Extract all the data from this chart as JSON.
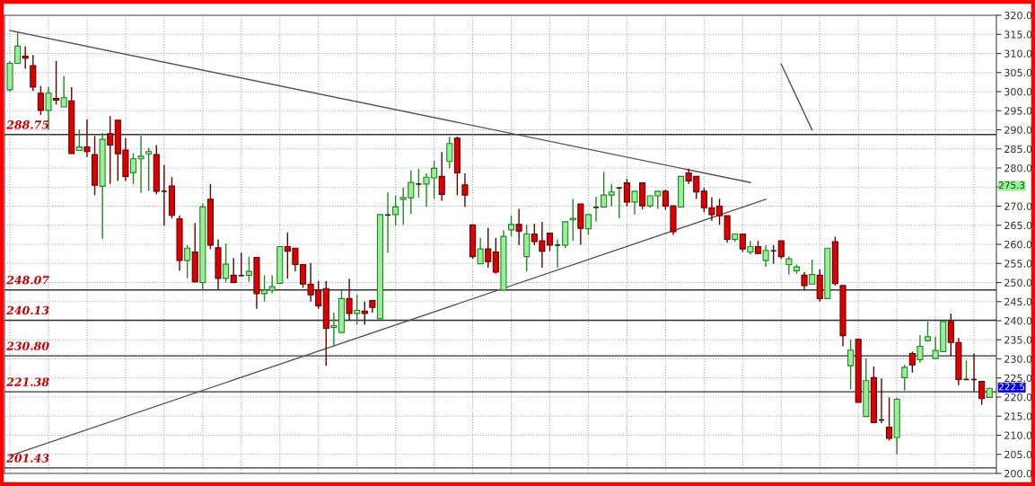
{
  "chart_data": {
    "type": "candlestick",
    "categories": [
      null,
      null,
      null,
      null,
      null,
      null,
      null,
      null,
      null,
      null,
      null,
      null,
      null,
      null,
      null,
      null,
      null,
      null,
      null,
      null,
      null,
      null,
      null,
      null,
      null,
      null,
      null,
      null,
      null,
      null,
      null,
      null,
      null,
      null,
      null,
      null,
      null,
      null,
      null,
      null,
      null,
      null,
      null,
      null,
      null,
      null,
      null,
      null,
      null,
      null,
      null,
      null,
      null,
      null,
      null,
      null,
      null,
      null,
      null,
      null,
      null,
      null,
      null,
      null,
      null,
      null,
      null,
      null,
      null,
      null,
      null,
      null,
      null,
      null,
      null,
      null,
      null,
      null,
      null,
      null,
      null,
      null,
      null,
      null,
      null,
      null,
      null,
      null,
      null,
      null,
      null,
      null,
      null,
      null,
      null,
      null,
      null,
      null,
      null,
      null,
      null,
      null,
      null,
      null,
      null,
      null,
      null,
      null,
      null,
      null,
      null,
      null,
      null,
      null,
      null,
      null,
      null,
      null,
      null,
      null,
      null,
      null,
      null,
      null,
      null,
      null,
      null,
      null
    ],
    "ohlc": [
      [
        300.5,
        308,
        300,
        307.4
      ],
      [
        307.4,
        315.5,
        307.4,
        311.9
      ],
      [
        309.3,
        311.9,
        306.0,
        308.8
      ],
      [
        306.8,
        309.6,
        300.2,
        301.2
      ],
      [
        299.6,
        301.5,
        293.9,
        295.1
      ],
      [
        295.1,
        301.3,
        290.0,
        299.6
      ],
      [
        298.2,
        308.0,
        296.6,
        297.8
      ],
      [
        296.0,
        304.1,
        296.0,
        298.4
      ],
      [
        297.6,
        301.2,
        283.8,
        283.8
      ],
      [
        284.6,
        290.0,
        284.6,
        285.5
      ],
      [
        285.5,
        292.7,
        282.9,
        284.3
      ],
      [
        283.5,
        288.4,
        272.9,
        275.5
      ],
      [
        275.2,
        289.2,
        261.5,
        287.5
      ],
      [
        289.0,
        293.6,
        275.8,
        286.0
      ],
      [
        292.5,
        292.5,
        276.6,
        283.7
      ],
      [
        284.7,
        287.8,
        276.6,
        277.8
      ],
      [
        278.8,
        283.9,
        275.8,
        282.4
      ],
      [
        282.4,
        288.4,
        273.5,
        283.1
      ],
      [
        283.7,
        285.3,
        274.0,
        284.3
      ],
      [
        283.5,
        286.0,
        273.1,
        273.9
      ],
      [
        274.0,
        280.8,
        264.9,
        273.9
      ],
      [
        275.3,
        277.6,
        266.8,
        267.6
      ],
      [
        266.7,
        267.6,
        253.1,
        255.8
      ],
      [
        255.8,
        259.8,
        251.1,
        259.0
      ],
      [
        258.0,
        265.6,
        250.0,
        250.2
      ],
      [
        250.0,
        270.7,
        248.0,
        269.8
      ],
      [
        271.8,
        275.8,
        258.7,
        259.8
      ],
      [
        259.1,
        261.3,
        248.0,
        251.1
      ],
      [
        251.1,
        260.2,
        250.0,
        254.8
      ],
      [
        251.9,
        256.4,
        250.0,
        250.0
      ],
      [
        252.1,
        257.8,
        251.8,
        251.8
      ],
      [
        251.9,
        256.8,
        250.2,
        252.9
      ],
      [
        256.6,
        256.6,
        243.1,
        247.1
      ],
      [
        247.1,
        251.9,
        245.0,
        248.0
      ],
      [
        248.0,
        251.9,
        247.2,
        248.9
      ],
      [
        249.8,
        259.4,
        249.8,
        259.4
      ],
      [
        259.4,
        263.1,
        251.0,
        258.2
      ],
      [
        259.0,
        259.0,
        252.9,
        254.7
      ],
      [
        254.7,
        254.7,
        248.6,
        249.6
      ],
      [
        249.6,
        255.1,
        245.0,
        246.8
      ],
      [
        248.0,
        250.4,
        243.1,
        243.9
      ],
      [
        248.4,
        250.4,
        228.2,
        238.0
      ],
      [
        238.2,
        242.1,
        233.3,
        238.7
      ],
      [
        236.9,
        248.0,
        236.9,
        245.8
      ],
      [
        245.8,
        251.0,
        240.2,
        241.9
      ],
      [
        241.9,
        246.8,
        239.0,
        242.7
      ],
      [
        242.5,
        245.0,
        239.0,
        241.9
      ],
      [
        245.3,
        245.3,
        242.1,
        243.5
      ],
      [
        240.5,
        267.8,
        240.5,
        267.8
      ],
      [
        267.7,
        273.7,
        257.8,
        267.8
      ],
      [
        267.8,
        272.7,
        264.9,
        269.8
      ],
      [
        271.8,
        274.8,
        265.1,
        272.3
      ],
      [
        272.2,
        279.4,
        268.0,
        276.2
      ],
      [
        275.8,
        279.8,
        272.2,
        275.9
      ],
      [
        275.8,
        278.6,
        269.8,
        277.6
      ],
      [
        277.4,
        281.9,
        271.9,
        279.9
      ],
      [
        277.8,
        284.2,
        271.4,
        273.1
      ],
      [
        281.7,
        288.2,
        279.9,
        286.4
      ],
      [
        287.8,
        288.2,
        272.9,
        278.7
      ],
      [
        275.6,
        278.6,
        269.8,
        272.9
      ],
      [
        265.1,
        265.1,
        256.2,
        256.8
      ],
      [
        254.9,
        261.7,
        254.9,
        258.8
      ],
      [
        258.8,
        264.3,
        253.9,
        255.5
      ],
      [
        258.0,
        261.7,
        252.3,
        252.7
      ],
      [
        248.0,
        263.7,
        248.0,
        262.1
      ],
      [
        263.8,
        267.6,
        262.1,
        265.2
      ],
      [
        265.2,
        269.3,
        259.8,
        263.5
      ],
      [
        256.8,
        265.1,
        252.9,
        262.7
      ],
      [
        262.7,
        265.4,
        259.8,
        260.7
      ],
      [
        260.9,
        265.9,
        253.9,
        258.2
      ],
      [
        262.9,
        262.9,
        258.2,
        259.8
      ],
      [
        259.8,
        261.3,
        253.9,
        259.9
      ],
      [
        259.8,
        265.9,
        259.0,
        265.9
      ],
      [
        266.4,
        271.9,
        260.9,
        266.8
      ],
      [
        270.6,
        270.6,
        259.9,
        264.2
      ],
      [
        264.1,
        267.8,
        262.5,
        267.8
      ],
      [
        269.7,
        272.5,
        266.0,
        269.8
      ],
      [
        269.8,
        279.0,
        269.8,
        272.9
      ],
      [
        272.9,
        275.8,
        270.0,
        273.7
      ],
      [
        274.8,
        275.0,
        266.8,
        274.9
      ],
      [
        276.1,
        277.2,
        270.0,
        271.1
      ],
      [
        271.1,
        273.9,
        267.8,
        273.9
      ],
      [
        276.1,
        276.1,
        269.2,
        270.1
      ],
      [
        270.1,
        272.7,
        269.6,
        272.7
      ],
      [
        272.7,
        273.9,
        269.3,
        273.9
      ],
      [
        273.9,
        274.3,
        269.0,
        270.0
      ],
      [
        270.1,
        270.1,
        262.5,
        263.3
      ],
      [
        269.8,
        277.8,
        269.8,
        277.8
      ],
      [
        278.7,
        279.8,
        275.8,
        276.6
      ],
      [
        277.8,
        277.8,
        271.9,
        273.7
      ],
      [
        273.9,
        274.8,
        268.4,
        269.6
      ],
      [
        269.6,
        272.3,
        266.2,
        267.8
      ],
      [
        270.0,
        271.9,
        265.1,
        267.5
      ],
      [
        267.5,
        267.5,
        260.5,
        261.3
      ],
      [
        261.3,
        262.7,
        260.7,
        262.7
      ],
      [
        262.7,
        262.7,
        258.0,
        258.8
      ],
      [
        258.0,
        260.9,
        257.3,
        259.4
      ],
      [
        259.4,
        260.9,
        257.6,
        257.6
      ],
      [
        255.8,
        259.8,
        254.1,
        258.4
      ],
      [
        258.4,
        259.8,
        254.9,
        258.3
      ],
      [
        260.9,
        260.9,
        256.2,
        256.8
      ],
      [
        254.7,
        256.8,
        252.1,
        256.2
      ],
      [
        253.1,
        254.7,
        252.3,
        254.1
      ],
      [
        251.9,
        252.7,
        248.0,
        249.2
      ],
      [
        249.6,
        256.0,
        249.6,
        252.1
      ],
      [
        251.9,
        253.5,
        245.0,
        245.8
      ],
      [
        245.8,
        259.0,
        245.8,
        259.0
      ],
      [
        260.7,
        262.0,
        249.2,
        249.7
      ],
      [
        249.2,
        249.2,
        233.3,
        236.1
      ],
      [
        228.2,
        235.1,
        222.0,
        232.3
      ],
      [
        235.1,
        235.1,
        218.6,
        218.6
      ],
      [
        214.9,
        230.1,
        214.9,
        224.3
      ],
      [
        225.1,
        228.0,
        213.3,
        213.3
      ],
      [
        214.1,
        224.9,
        213.2,
        214.0
      ],
      [
        212.1,
        219.9,
        208.6,
        209.2
      ],
      [
        209.4,
        219.8,
        205.0,
        219.4
      ],
      [
        225.1,
        228.4,
        221.7,
        227.8
      ],
      [
        231.4,
        231.9,
        226.4,
        228.4
      ],
      [
        229.8,
        236.2,
        229.0,
        233.3
      ],
      [
        234.8,
        239.8,
        234.5,
        235.8
      ],
      [
        230.1,
        235.8,
        230.1,
        232.2
      ],
      [
        231.9,
        240.2,
        231.9,
        239.8
      ],
      [
        239.8,
        241.9,
        230.7,
        234.3
      ],
      [
        234.3,
        235.5,
        223.1,
        224.6
      ],
      [
        224.6,
        229.6,
        224.6,
        224.8
      ],
      [
        224.8,
        231.4,
        221.5,
        224.6
      ],
      [
        224.1,
        224.1,
        218.0,
        219.6
      ],
      [
        219.9,
        222.5,
        219.8,
        222.3
      ]
    ],
    "series": [
      {
        "type": "line",
        "color": "#555555",
        "values": [
          316.0,
          null,
          null,
          null,
          null,
          null,
          null,
          null,
          null,
          null,
          null,
          null,
          null,
          null,
          null,
          null,
          null,
          null,
          null,
          null,
          null,
          null,
          null,
          null,
          null,
          null,
          null,
          null,
          null,
          null,
          null,
          null,
          null,
          null,
          null,
          null,
          null,
          null,
          null,
          null,
          null,
          null,
          null,
          null,
          null,
          null,
          null,
          null,
          null,
          null,
          null,
          null,
          null,
          null,
          null,
          null,
          null,
          null,
          null,
          null,
          null,
          null,
          null,
          null,
          null,
          null,
          null,
          null,
          null,
          null,
          null,
          null,
          null,
          null,
          null,
          null,
          null,
          null,
          null,
          null,
          null,
          null,
          null,
          null,
          null,
          null,
          null,
          null,
          null,
          null,
          null,
          null,
          null,
          null,
          null,
          null,
          276.2,
          null,
          null,
          null,
          null,
          null,
          null,
          null,
          null,
          null,
          null,
          null,
          null,
          null,
          null,
          null,
          null,
          null,
          null,
          null,
          null,
          null,
          null,
          null,
          null,
          null,
          null,
          null,
          null,
          null,
          null,
          null
        ]
      },
      {
        "type": "line",
        "color": "#555555",
        "values": [
          204.6,
          null,
          null,
          null,
          null,
          null,
          null,
          null,
          null,
          null,
          null,
          null,
          null,
          null,
          null,
          null,
          null,
          null,
          null,
          null,
          null,
          null,
          null,
          null,
          null,
          null,
          null,
          null,
          null,
          null,
          null,
          null,
          null,
          null,
          null,
          null,
          null,
          null,
          null,
          null,
          null,
          null,
          null,
          null,
          null,
          null,
          null,
          null,
          null,
          null,
          null,
          null,
          null,
          null,
          null,
          null,
          null,
          null,
          null,
          null,
          null,
          null,
          null,
          null,
          null,
          null,
          null,
          null,
          null,
          null,
          null,
          null,
          null,
          null,
          null,
          null,
          null,
          null,
          null,
          null,
          null,
          null,
          null,
          null,
          null,
          null,
          null,
          null,
          null,
          null,
          null,
          null,
          null,
          null,
          null,
          null,
          null,
          null,
          271.8,
          null,
          null,
          null,
          null,
          null,
          null,
          null,
          null,
          null,
          null,
          null,
          null,
          null,
          null,
          null,
          null,
          null,
          null,
          null,
          null,
          null,
          null,
          null,
          null,
          null,
          null,
          null,
          null,
          null
        ]
      },
      {
        "type": "line",
        "color": "#555555",
        "values": [
          null,
          null,
          null,
          null,
          null,
          null,
          null,
          null,
          null,
          null,
          null,
          null,
          null,
          null,
          null,
          null,
          null,
          null,
          null,
          null,
          null,
          null,
          null,
          null,
          null,
          null,
          null,
          null,
          null,
          null,
          null,
          null,
          null,
          null,
          null,
          null,
          null,
          null,
          null,
          null,
          null,
          null,
          null,
          null,
          null,
          null,
          null,
          null,
          null,
          null,
          null,
          null,
          null,
          null,
          null,
          null,
          null,
          null,
          null,
          null,
          null,
          null,
          null,
          null,
          null,
          null,
          null,
          null,
          null,
          null,
          null,
          null,
          null,
          null,
          null,
          null,
          null,
          null,
          null,
          null,
          null,
          null,
          null,
          null,
          null,
          null,
          null,
          null,
          null,
          null,
          null,
          null,
          null,
          null,
          null,
          null,
          null,
          null,
          null,
          null,
          307.2,
          null,
          null,
          null,
          290.0,
          null,
          null,
          null,
          null,
          null,
          null,
          null,
          null,
          null,
          null,
          null,
          null,
          null,
          null,
          null,
          null,
          null,
          null,
          null,
          null,
          null,
          null,
          null
        ]
      }
    ],
    "ref_lines": [
      {
        "axis": "y",
        "value": 288.75,
        "label": "288.75",
        "color": "#333333"
      },
      {
        "axis": "y",
        "value": 248.07,
        "label": "248.07",
        "color": "#333333"
      },
      {
        "axis": "y",
        "value": 240.13,
        "label": "240.13",
        "color": "#333333"
      },
      {
        "axis": "y",
        "value": 230.8,
        "label": "230.80",
        "color": "#333333"
      },
      {
        "axis": "y",
        "value": 221.38,
        "label": "221.38",
        "color": "#333333"
      },
      {
        "axis": "y",
        "value": 201.43,
        "label": "201.43",
        "color": "#333333"
      }
    ],
    "annotations": [
      {
        "text": "275.3",
        "y": 275.3
      },
      {
        "text": "222.5",
        "y": 222.5
      }
    ],
    "ylim": [
      200,
      320
    ],
    "yticks": [
      {
        "value": 200,
        "label": "200.0"
      },
      {
        "value": 205,
        "label": "205.0"
      },
      {
        "value": 210,
        "label": "210.0"
      },
      {
        "value": 215,
        "label": "215.0"
      },
      {
        "value": 220,
        "label": "220.0"
      },
      {
        "value": 225,
        "label": "225.0"
      },
      {
        "value": 230,
        "label": "230.0"
      },
      {
        "value": 235,
        "label": "235.0"
      },
      {
        "value": 240,
        "label": "240.0"
      },
      {
        "value": 245,
        "label": "245.0"
      },
      {
        "value": 250,
        "label": "250.0"
      },
      {
        "value": 255,
        "label": "255.0"
      },
      {
        "value": 260,
        "label": "260.0"
      },
      {
        "value": 265,
        "label": "265.0"
      },
      {
        "value": 270,
        "label": "270.0"
      },
      {
        "value": 275,
        "label": null
      },
      {
        "value": 280,
        "label": "280.0"
      },
      {
        "value": 285,
        "label": "285.0"
      },
      {
        "value": 290,
        "label": "290.0"
      },
      {
        "value": 295,
        "label": "295.0"
      },
      {
        "value": 300,
        "label": "300.0"
      },
      {
        "value": 305,
        "label": "305.0"
      },
      {
        "value": 310,
        "label": "310.0"
      },
      {
        "value": 315,
        "label": "315.0"
      },
      {
        "value": 320,
        "label": "320.0"
      }
    ],
    "grid": true,
    "tick_labels": "y"
  }
}
